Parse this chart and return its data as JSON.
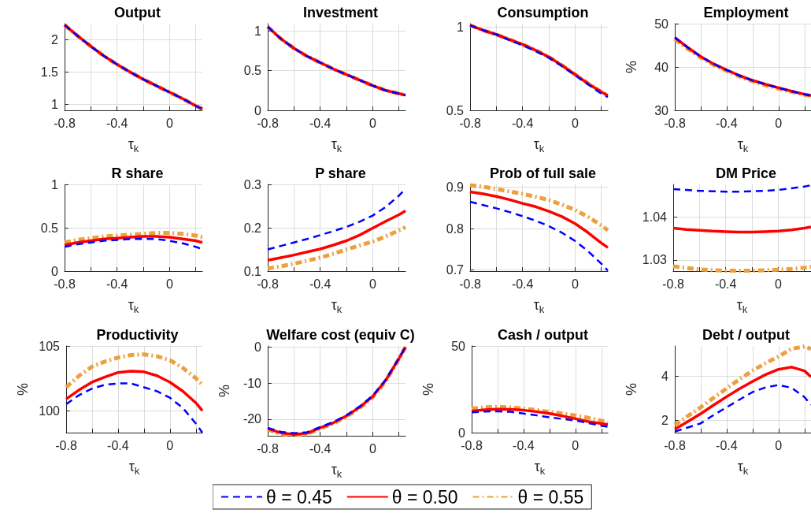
{
  "chart_data": [
    {
      "type": "line",
      "title": "Output",
      "xlabel": "τ$_{k}$",
      "x": [
        -0.8,
        -0.7,
        -0.6,
        -0.5,
        -0.4,
        -0.3,
        -0.2,
        -0.1,
        0,
        0.1,
        0.2,
        0.25
      ],
      "xlim": [
        -0.8,
        0.25
      ],
      "xticks": [
        -0.8,
        {
          "value": -0.6,
          "label": null
        },
        -0.4,
        {
          "value": -0.2,
          "label": null
        },
        0,
        {
          "value": 0.2,
          "label": null
        }
      ],
      "ylim": [
        0.91,
        2.25
      ],
      "yticks": [
        1,
        1.5,
        2
      ],
      "grid": true,
      "marker": "none",
      "legend": false,
      "series": [
        {
          "color": "#0000ff",
          "line_style": "dashed",
          "values": [
            2.23,
            2.06,
            1.9,
            1.75,
            1.62,
            1.5,
            1.39,
            1.29,
            1.19,
            1.09,
            0.98,
            0.93
          ]
        },
        {
          "color": "#ff0000",
          "line_style": "solid",
          "values": [
            2.23,
            2.06,
            1.9,
            1.75,
            1.62,
            1.5,
            1.39,
            1.29,
            1.19,
            1.09,
            0.98,
            0.93
          ]
        },
        {
          "color": "#eda03c",
          "line_style": "dashdot",
          "values": [
            2.23,
            2.06,
            1.9,
            1.75,
            1.62,
            1.5,
            1.39,
            1.29,
            1.19,
            1.09,
            0.98,
            0.93
          ]
        }
      ]
    },
    {
      "type": "line",
      "title": "Investment",
      "xlabel": "τ$_{k}$",
      "x": [
        -0.8,
        -0.7,
        -0.6,
        -0.5,
        -0.4,
        -0.3,
        -0.2,
        -0.1,
        0,
        0.1,
        0.2,
        0.25
      ],
      "xlim": [
        -0.8,
        0.25
      ],
      "xticks": [
        -0.8,
        {
          "value": -0.6,
          "label": null
        },
        -0.4,
        {
          "value": -0.2,
          "label": null
        },
        0,
        {
          "value": 0.2,
          "label": null
        }
      ],
      "ylim": [
        0,
        1.09
      ],
      "yticks": [
        0,
        0.5,
        1
      ],
      "grid": true,
      "marker": "none",
      "legend": false,
      "series": [
        {
          "color": "#0000ff",
          "line_style": "dashed",
          "values": [
            1.05,
            0.9,
            0.78,
            0.68,
            0.6,
            0.52,
            0.45,
            0.38,
            0.31,
            0.25,
            0.21,
            0.19
          ]
        },
        {
          "color": "#ff0000",
          "line_style": "solid",
          "values": [
            1.05,
            0.9,
            0.78,
            0.68,
            0.6,
            0.52,
            0.45,
            0.38,
            0.31,
            0.25,
            0.21,
            0.19
          ]
        },
        {
          "color": "#eda03c",
          "line_style": "dashdot",
          "values": [
            1.05,
            0.9,
            0.78,
            0.68,
            0.6,
            0.52,
            0.45,
            0.38,
            0.31,
            0.25,
            0.21,
            0.19
          ]
        }
      ]
    },
    {
      "type": "line",
      "title": "Consumption",
      "xlabel": "τ$_{k}$",
      "x": [
        -0.8,
        -0.7,
        -0.6,
        -0.5,
        -0.4,
        -0.3,
        -0.2,
        -0.1,
        0,
        0.1,
        0.2,
        0.25
      ],
      "xlim": [
        -0.8,
        0.25
      ],
      "xticks": [
        -0.8,
        {
          "value": -0.6,
          "label": null
        },
        -0.4,
        {
          "value": -0.2,
          "label": null
        },
        0,
        {
          "value": 0.2,
          "label": null
        }
      ],
      "ylim": [
        0.5,
        1.02
      ],
      "yticks": [
        0.5,
        1
      ],
      "grid": true,
      "marker": "none",
      "legend": false,
      "series": [
        {
          "color": "#0000ff",
          "line_style": "dashed",
          "values": [
            1.01,
            0.98,
            0.955,
            0.92,
            0.89,
            0.855,
            0.815,
            0.765,
            0.71,
            0.655,
            0.6,
            0.58
          ]
        },
        {
          "color": "#ff0000",
          "line_style": "solid",
          "values": [
            1.01,
            0.98,
            0.955,
            0.925,
            0.895,
            0.86,
            0.82,
            0.77,
            0.715,
            0.66,
            0.61,
            0.59
          ]
        },
        {
          "color": "#eda03c",
          "line_style": "dashdot",
          "values": [
            1.01,
            0.98,
            0.955,
            0.925,
            0.895,
            0.86,
            0.82,
            0.77,
            0.715,
            0.66,
            0.61,
            0.59
          ]
        }
      ]
    },
    {
      "type": "line",
      "title": "Employment",
      "xlabel": "τ$_{k}$",
      "ylabel": "%",
      "x": [
        -0.8,
        -0.7,
        -0.6,
        -0.5,
        -0.4,
        -0.3,
        -0.2,
        -0.1,
        0,
        0.1,
        0.2,
        0.25
      ],
      "xlim": [
        -0.8,
        0.25
      ],
      "xticks": [
        -0.8,
        {
          "value": -0.6,
          "label": null
        },
        -0.4,
        {
          "value": -0.2,
          "label": null
        },
        0,
        {
          "value": 0.2,
          "label": null
        }
      ],
      "ylim": [
        30,
        50
      ],
      "yticks": [
        30,
        40,
        50
      ],
      "grid": true,
      "marker": "none",
      "legend": false,
      "series": [
        {
          "color": "#0000ff",
          "line_style": "dashed",
          "values": [
            46.8,
            44.5,
            42.4,
            40.7,
            39.3,
            38.0,
            36.9,
            36.0,
            35.2,
            34.4,
            33.7,
            33.4
          ]
        },
        {
          "color": "#ff0000",
          "line_style": "solid",
          "values": [
            46.8,
            44.5,
            42.4,
            40.7,
            39.3,
            38.0,
            36.9,
            36.0,
            35.2,
            34.4,
            33.7,
            33.4
          ]
        },
        {
          "color": "#eda03c",
          "line_style": "dashdot",
          "values": [
            46.4,
            44.2,
            42.2,
            40.5,
            39.1,
            37.8,
            36.7,
            35.8,
            35.0,
            34.3,
            33.6,
            33.3
          ]
        }
      ]
    },
    {
      "type": "line",
      "title": "R share",
      "xlabel": "τ$_{k}$",
      "x": [
        -0.8,
        -0.7,
        -0.6,
        -0.5,
        -0.4,
        -0.3,
        -0.2,
        -0.1,
        0,
        0.1,
        0.2,
        0.25
      ],
      "xlim": [
        -0.8,
        0.25
      ],
      "xticks": [
        -0.8,
        {
          "value": -0.6,
          "label": null
        },
        -0.4,
        {
          "value": -0.2,
          "label": null
        },
        0,
        {
          "value": 0.2,
          "label": null
        }
      ],
      "ylim": [
        0,
        1
      ],
      "yticks": [
        0,
        0.5,
        1
      ],
      "grid": true,
      "marker": "none",
      "legend": false,
      "series": [
        {
          "color": "#0000ff",
          "line_style": "dashed",
          "values": [
            0.28,
            0.31,
            0.33,
            0.35,
            0.36,
            0.37,
            0.37,
            0.37,
            0.35,
            0.32,
            0.28,
            0.25
          ]
        },
        {
          "color": "#ff0000",
          "line_style": "solid",
          "values": [
            0.3,
            0.33,
            0.35,
            0.37,
            0.38,
            0.39,
            0.4,
            0.4,
            0.39,
            0.37,
            0.35,
            0.33
          ]
        },
        {
          "color": "#eda03c",
          "line_style": "dashdot",
          "values": [
            0.33,
            0.36,
            0.38,
            0.4,
            0.41,
            0.42,
            0.43,
            0.44,
            0.44,
            0.43,
            0.41,
            0.39
          ]
        }
      ]
    },
    {
      "type": "line",
      "title": "P share",
      "xlabel": "τ$_{k}$",
      "x": [
        -0.8,
        -0.7,
        -0.6,
        -0.5,
        -0.4,
        -0.3,
        -0.2,
        -0.1,
        0,
        0.1,
        0.2,
        0.25
      ],
      "xlim": [
        -0.8,
        0.25
      ],
      "xticks": [
        -0.8,
        {
          "value": -0.6,
          "label": null
        },
        -0.4,
        {
          "value": -0.2,
          "label": null
        },
        0,
        {
          "value": 0.2,
          "label": null
        }
      ],
      "ylim": [
        0.1,
        0.3
      ],
      "yticks": [
        0.1,
        0.2,
        0.3
      ],
      "grid": true,
      "marker": "none",
      "legend": false,
      "series": [
        {
          "color": "#0000ff",
          "line_style": "dashed",
          "values": [
            0.15,
            0.158,
            0.166,
            0.174,
            0.183,
            0.192,
            0.202,
            0.214,
            0.228,
            0.248,
            0.274,
            0.29
          ]
        },
        {
          "color": "#ff0000",
          "line_style": "solid",
          "values": [
            0.125,
            0.131,
            0.137,
            0.144,
            0.151,
            0.16,
            0.17,
            0.183,
            0.199,
            0.215,
            0.23,
            0.239
          ]
        },
        {
          "color": "#eda03c",
          "line_style": "dashdot",
          "values": [
            0.106,
            0.111,
            0.117,
            0.124,
            0.131,
            0.14,
            0.15,
            0.159,
            0.168,
            0.18,
            0.194,
            0.201
          ]
        }
      ]
    },
    {
      "type": "line",
      "title": "Prob of full sale",
      "xlabel": "τ$_{k}$",
      "x": [
        -0.8,
        -0.7,
        -0.6,
        -0.5,
        -0.4,
        -0.3,
        -0.2,
        -0.1,
        0,
        0.1,
        0.2,
        0.25
      ],
      "xlim": [
        -0.8,
        0.25
      ],
      "xticks": [
        -0.8,
        {
          "value": -0.6,
          "label": null
        },
        -0.4,
        {
          "value": -0.2,
          "label": null
        },
        0,
        {
          "value": 0.2,
          "label": null
        }
      ],
      "ylim": [
        0.697,
        0.907
      ],
      "yticks": [
        0.7,
        0.8,
        0.9
      ],
      "grid": true,
      "marker": "none",
      "legend": false,
      "series": [
        {
          "color": "#0000ff",
          "line_style": "dashed",
          "values": [
            0.865,
            0.857,
            0.849,
            0.84,
            0.83,
            0.819,
            0.806,
            0.79,
            0.77,
            0.745,
            0.715,
            0.698
          ]
        },
        {
          "color": "#ff0000",
          "line_style": "solid",
          "values": [
            0.889,
            0.884,
            0.878,
            0.87,
            0.861,
            0.853,
            0.842,
            0.829,
            0.812,
            0.79,
            0.765,
            0.754
          ]
        },
        {
          "color": "#eda03c",
          "line_style": "dashdot",
          "values": [
            0.905,
            0.901,
            0.896,
            0.89,
            0.884,
            0.877,
            0.869,
            0.858,
            0.845,
            0.828,
            0.808,
            0.796
          ]
        }
      ]
    },
    {
      "type": "line",
      "title": "DM Price",
      "xlabel": "τ$_{k}$",
      "x": [
        -0.8,
        -0.7,
        -0.6,
        -0.5,
        -0.4,
        -0.3,
        -0.2,
        -0.1,
        0,
        0.1,
        0.2,
        0.25
      ],
      "xlim": [
        -0.8,
        0.25
      ],
      "xticks": [
        -0.8,
        {
          "value": -0.6,
          "label": null
        },
        -0.4,
        {
          "value": -0.2,
          "label": null
        },
        0,
        {
          "value": 0.2,
          "label": null
        }
      ],
      "ylim": [
        1.0274,
        1.0476
      ],
      "yticks": [
        1.03,
        1.04
      ],
      "grid": true,
      "marker": "none",
      "legend": false,
      "series": [
        {
          "color": "#0000ff",
          "line_style": "dashed",
          "values": [
            1.0465,
            1.0463,
            1.0461,
            1.046,
            1.0459,
            1.0459,
            1.046,
            1.0461,
            1.0463,
            1.0467,
            1.0471,
            1.0474
          ]
        },
        {
          "color": "#ff0000",
          "line_style": "solid",
          "values": [
            1.0374,
            1.0371,
            1.0369,
            1.0367,
            1.0366,
            1.0365,
            1.0365,
            1.0366,
            1.0367,
            1.037,
            1.0374,
            1.0377
          ]
        },
        {
          "color": "#eda03c",
          "line_style": "dashdot",
          "values": [
            1.0285,
            1.0281,
            1.0278,
            1.0276,
            1.0275,
            1.0275,
            1.0275,
            1.0276,
            1.0277,
            1.0279,
            1.0282,
            1.0284
          ]
        }
      ]
    },
    {
      "type": "line",
      "title": "Productivity",
      "xlabel": "τ$_{k}$",
      "ylabel": "%",
      "x": [
        -0.8,
        -0.7,
        -0.6,
        -0.5,
        -0.4,
        -0.3,
        -0.2,
        -0.1,
        0,
        0.1,
        0.2,
        0.25
      ],
      "xlim": [
        -0.8,
        0.25
      ],
      "xticks": [
        -0.8,
        {
          "value": -0.6,
          "label": null
        },
        -0.4,
        {
          "value": -0.2,
          "label": null
        },
        0,
        {
          "value": 0.2,
          "label": null
        }
      ],
      "ylim": [
        98.3,
        105
      ],
      "yticks": [
        100,
        105
      ],
      "grid": true,
      "marker": "none",
      "legend": false,
      "series": [
        {
          "color": "#0000ff",
          "line_style": "dashed",
          "values": [
            100.5,
            101.2,
            101.7,
            102.0,
            102.1,
            102.1,
            101.8,
            101.5,
            101.0,
            100.2,
            99.0,
            98.3
          ]
        },
        {
          "color": "#ff0000",
          "line_style": "solid",
          "values": [
            100.9,
            101.6,
            102.2,
            102.6,
            102.95,
            103.05,
            103.0,
            102.7,
            102.2,
            101.5,
            100.6,
            100.0
          ]
        },
        {
          "color": "#eda03c",
          "line_style": "dashdot",
          "values": [
            101.8,
            102.7,
            103.4,
            103.8,
            104.1,
            104.3,
            104.35,
            104.2,
            103.9,
            103.3,
            102.5,
            102.0
          ]
        }
      ]
    },
    {
      "type": "line",
      "title": "Welfare cost (equiv C)",
      "xlabel": "τ$_{k}$",
      "ylabel": "%",
      "x": [
        -0.8,
        -0.7,
        -0.6,
        -0.5,
        -0.4,
        -0.3,
        -0.2,
        -0.1,
        0,
        0.1,
        0.2,
        0.25
      ],
      "xlim": [
        -0.8,
        0.25
      ],
      "xticks": [
        -0.8,
        {
          "value": -0.6,
          "label": null
        },
        -0.4,
        {
          "value": -0.2,
          "label": null
        },
        0,
        {
          "value": 0.2,
          "label": null
        }
      ],
      "ylim": [
        -24.6,
        0.3
      ],
      "yticks": [
        -20,
        -10,
        0
      ],
      "grid": true,
      "marker": "none",
      "legend": "bottom",
      "series": [
        {
          "name": "θ = 0.45",
          "color": "#0000ff",
          "line_style": "dashed",
          "values": [
            -22.4,
            -23.5,
            -23.9,
            -23.6,
            -22.2,
            -20.8,
            -18.9,
            -16.5,
            -13.5,
            -9.0,
            -3.1,
            0
          ]
        },
        {
          "name": "θ = 0.50",
          "color": "#ff0000",
          "line_style": "solid",
          "values": [
            -22.6,
            -23.8,
            -24.2,
            -23.9,
            -22.4,
            -21.0,
            -19.1,
            -16.7,
            -13.7,
            -9.2,
            -3.2,
            0
          ]
        },
        {
          "name": "θ = 0.55",
          "color": "#eda03c",
          "line_style": "dashdot",
          "values": [
            -22.9,
            -24.1,
            -24.5,
            -24.1,
            -22.6,
            -21.2,
            -19.3,
            -16.9,
            -13.9,
            -9.4,
            -3.3,
            0
          ]
        }
      ]
    },
    {
      "type": "line",
      "title": "Cash / output",
      "xlabel": "τ$_{k}$",
      "ylabel": "%",
      "x": [
        -0.8,
        -0.7,
        -0.6,
        -0.5,
        -0.4,
        -0.3,
        -0.2,
        -0.1,
        0,
        0.1,
        0.2,
        0.25
      ],
      "xlim": [
        -0.8,
        0.25
      ],
      "xticks": [
        -0.8,
        {
          "value": -0.6,
          "label": null
        },
        -0.4,
        {
          "value": -0.2,
          "label": null
        },
        0,
        {
          "value": 0.2,
          "label": null
        }
      ],
      "ylim": [
        0,
        50
      ],
      "yticks": [
        0,
        50
      ],
      "grid": true,
      "marker": "none",
      "legend": false,
      "series": [
        {
          "color": "#0000ff",
          "line_style": "dashed",
          "values": [
            11.7,
            12.2,
            12.3,
            12.0,
            11.0,
            10.0,
            8.8,
            7.9,
            7.0,
            5.5,
            4.0,
            3.4
          ]
        },
        {
          "color": "#ff0000",
          "line_style": "solid",
          "values": [
            12.4,
            13.2,
            13.5,
            13.4,
            12.9,
            12.1,
            11.0,
            9.6,
            8.0,
            6.4,
            5.2,
            4.7
          ]
        },
        {
          "color": "#eda03c",
          "line_style": "dashdot",
          "values": [
            13.9,
            14.6,
            14.9,
            14.6,
            13.9,
            13.0,
            12.0,
            11.0,
            9.9,
            8.5,
            6.9,
            6.1
          ]
        }
      ]
    },
    {
      "type": "line",
      "title": "Debt / output",
      "xlabel": "τ$_{k}$",
      "ylabel": "%",
      "x": [
        -0.8,
        -0.7,
        -0.6,
        -0.5,
        -0.4,
        -0.3,
        -0.2,
        -0.1,
        0,
        0.1,
        0.2,
        0.25
      ],
      "xlim": [
        -0.8,
        0.25
      ],
      "xticks": [
        -0.8,
        {
          "value": -0.6,
          "label": null
        },
        -0.4,
        {
          "value": -0.2,
          "label": null
        },
        0,
        {
          "value": 0.2,
          "label": null
        }
      ],
      "ylim": [
        1.45,
        5.38
      ],
      "yticks": [
        2,
        4
      ],
      "grid": true,
      "marker": "none",
      "legend": false,
      "series": [
        {
          "color": "#0000ff",
          "line_style": "dashed",
          "values": [
            1.5,
            1.68,
            1.87,
            2.25,
            2.6,
            2.95,
            3.29,
            3.5,
            3.61,
            3.48,
            3.06,
            2.71
          ]
        },
        {
          "color": "#ff0000",
          "line_style": "solid",
          "values": [
            1.6,
            1.95,
            2.31,
            2.7,
            3.08,
            3.44,
            3.77,
            4.08,
            4.32,
            4.42,
            4.25,
            3.98
          ]
        },
        {
          "color": "#eda03c",
          "line_style": "dashdot",
          "values": [
            1.79,
            2.2,
            2.6,
            3.03,
            3.46,
            3.87,
            4.26,
            4.6,
            4.9,
            5.25,
            5.36,
            5.24
          ]
        }
      ]
    }
  ]
}
